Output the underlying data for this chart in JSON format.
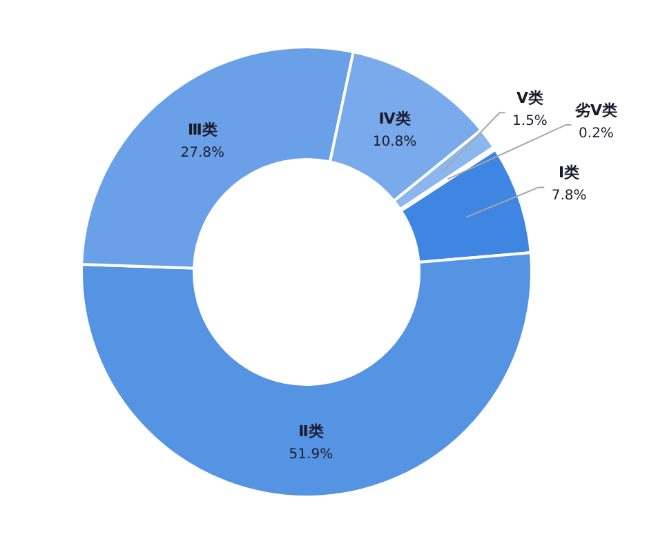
{
  "chart_data": {
    "type": "donut",
    "categories": [
      "Ⅰ类",
      "Ⅱ类",
      "Ⅲ类",
      "Ⅳ类",
      "Ⅴ类",
      "劣Ⅴ类"
    ],
    "values": [
      7.8,
      51.9,
      27.8,
      10.8,
      1.5,
      0.2
    ],
    "value_labels": [
      "7.8%",
      "51.9%",
      "27.8%",
      "10.8%",
      "1.5%",
      "0.2%"
    ],
    "colors": [
      "#3f86e2",
      "#5593e3",
      "#6aa0e8",
      "#79aaeb",
      "#8cb7ee",
      "#a9c9f2"
    ]
  }
}
